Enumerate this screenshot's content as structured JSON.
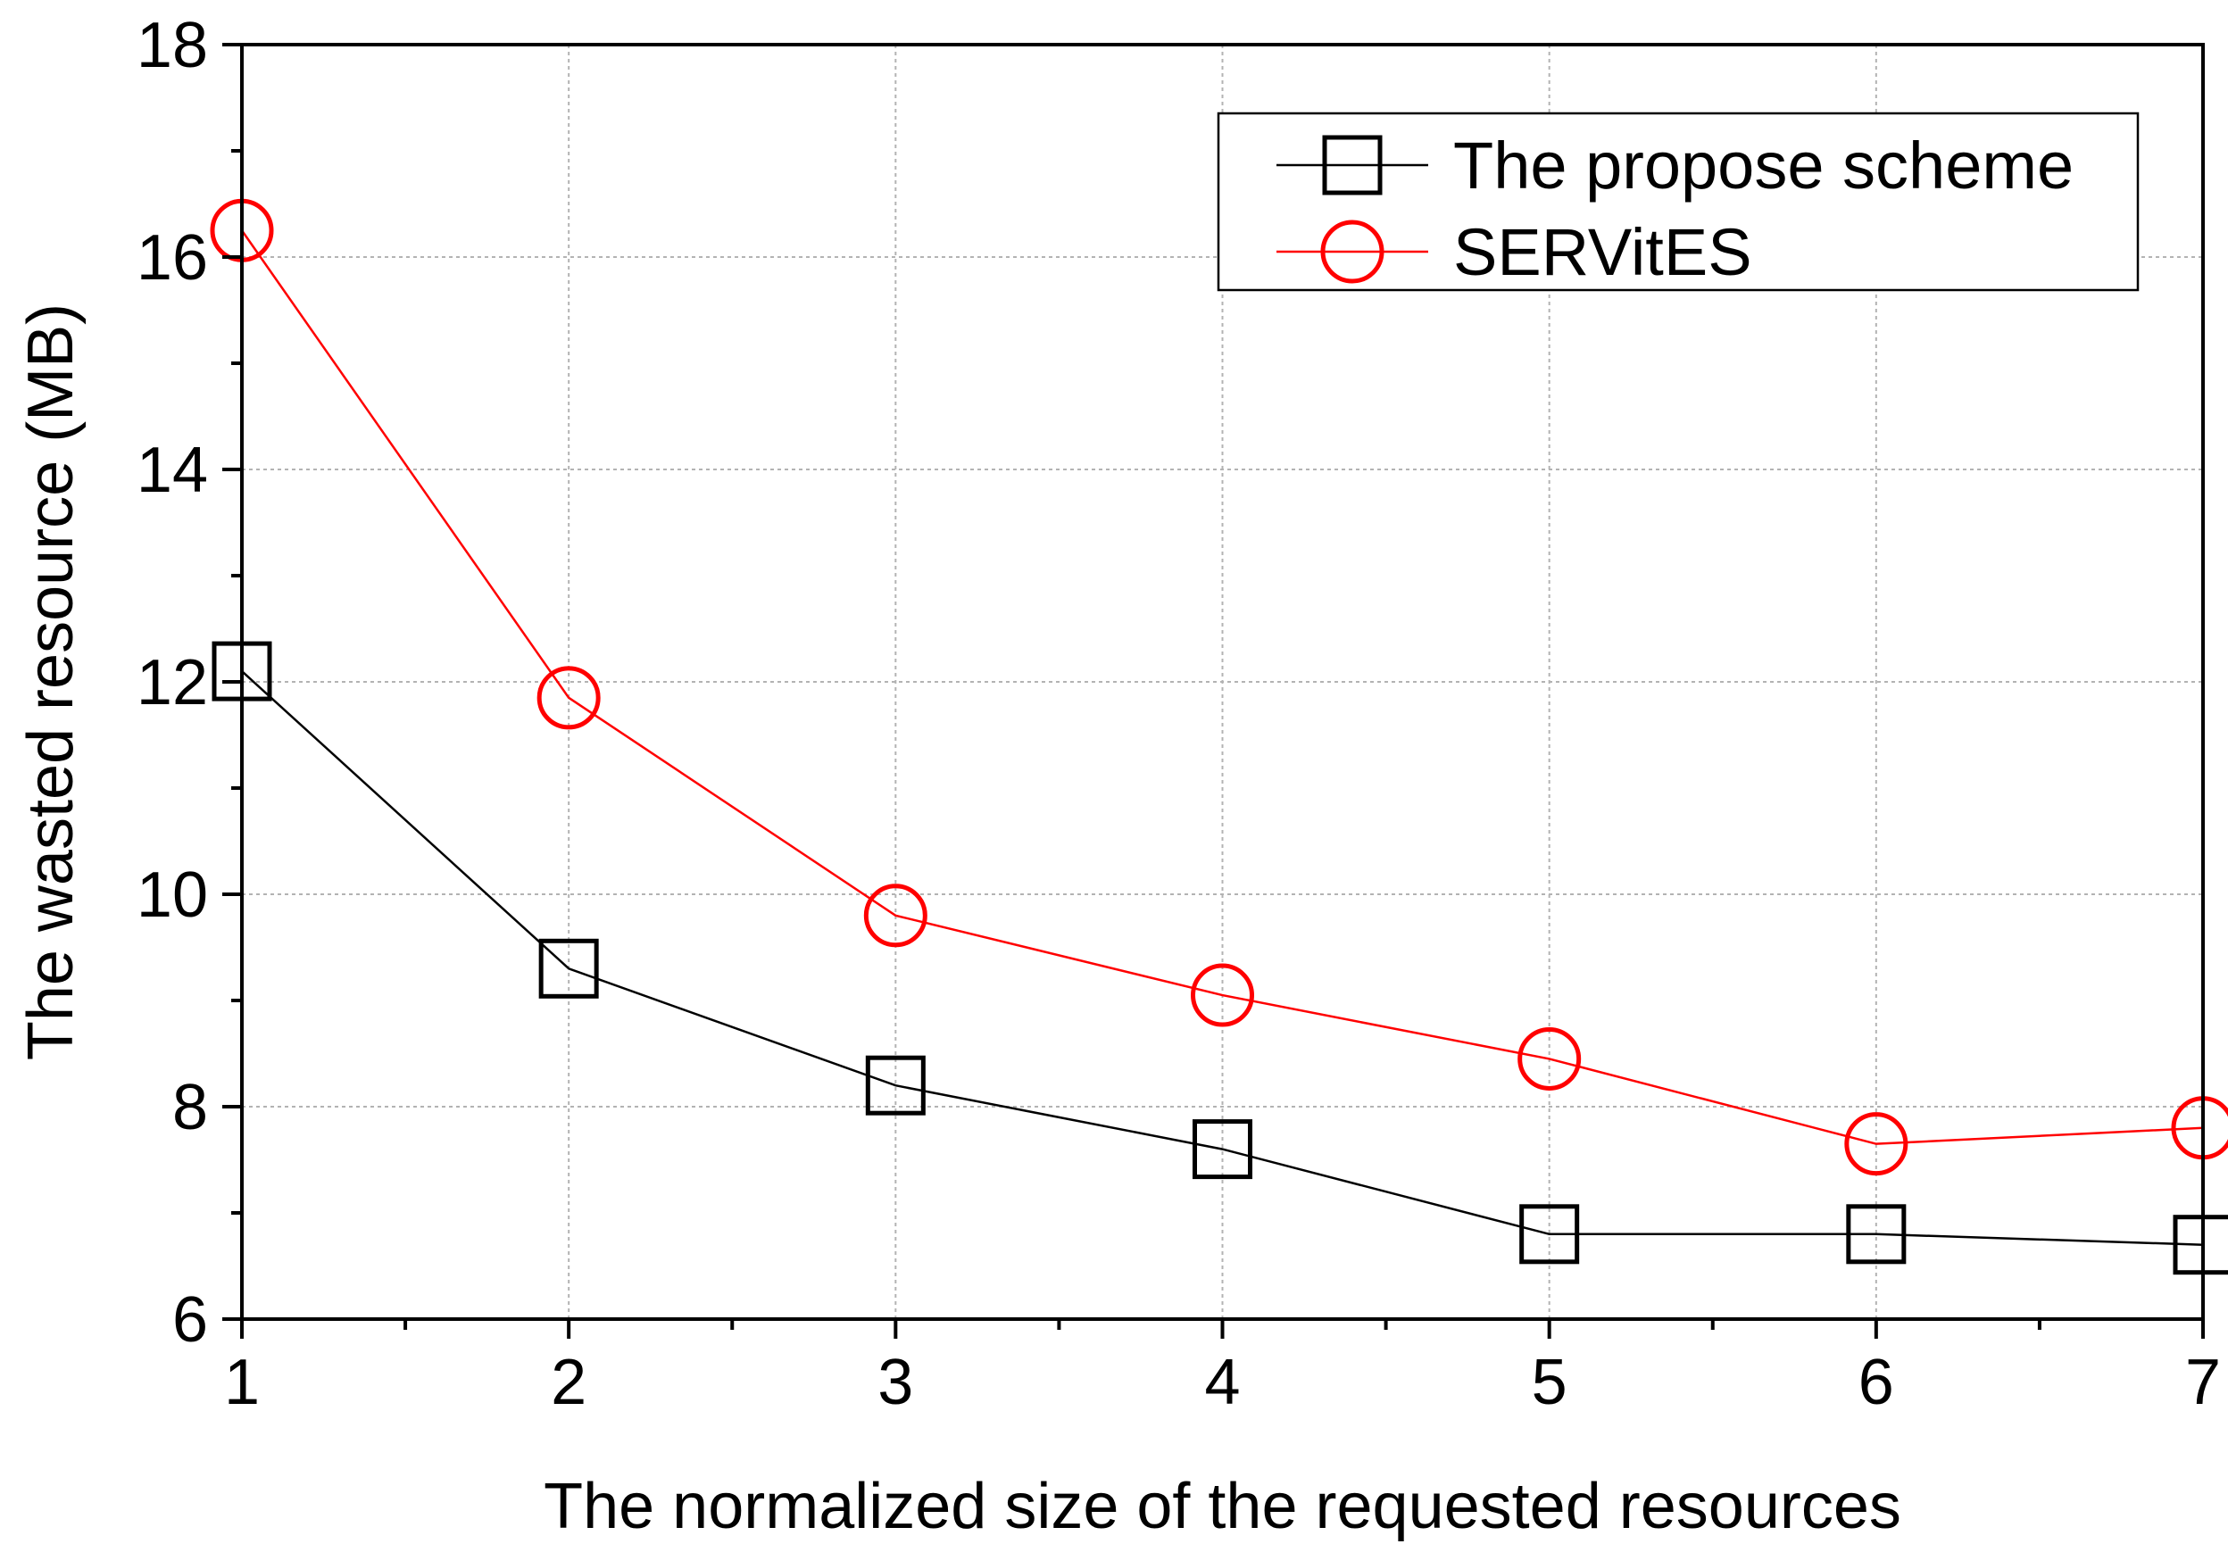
{
  "chart_data": {
    "type": "line",
    "title": "",
    "xlabel": "The normalized size of the requested resources",
    "ylabel": "The wasted resource (MB)",
    "xlim": [
      1,
      7
    ],
    "ylim": [
      6,
      18
    ],
    "x_ticks": [
      1,
      2,
      3,
      4,
      5,
      6,
      7
    ],
    "y_ticks": [
      6,
      8,
      10,
      12,
      14,
      16,
      18
    ],
    "grid": true,
    "legend_position": "top-right",
    "x": [
      1,
      2,
      3,
      4,
      5,
      6,
      7
    ],
    "series": [
      {
        "name": "The propose scheme",
        "values": [
          12.1,
          9.3,
          8.2,
          7.6,
          6.8,
          6.8,
          6.7
        ],
        "color": "#000000",
        "marker": "square"
      },
      {
        "name": "SERVitES",
        "values": [
          16.25,
          11.85,
          9.8,
          9.05,
          8.45,
          7.65,
          7.8
        ],
        "color": "#ff0000",
        "marker": "circle"
      }
    ]
  }
}
